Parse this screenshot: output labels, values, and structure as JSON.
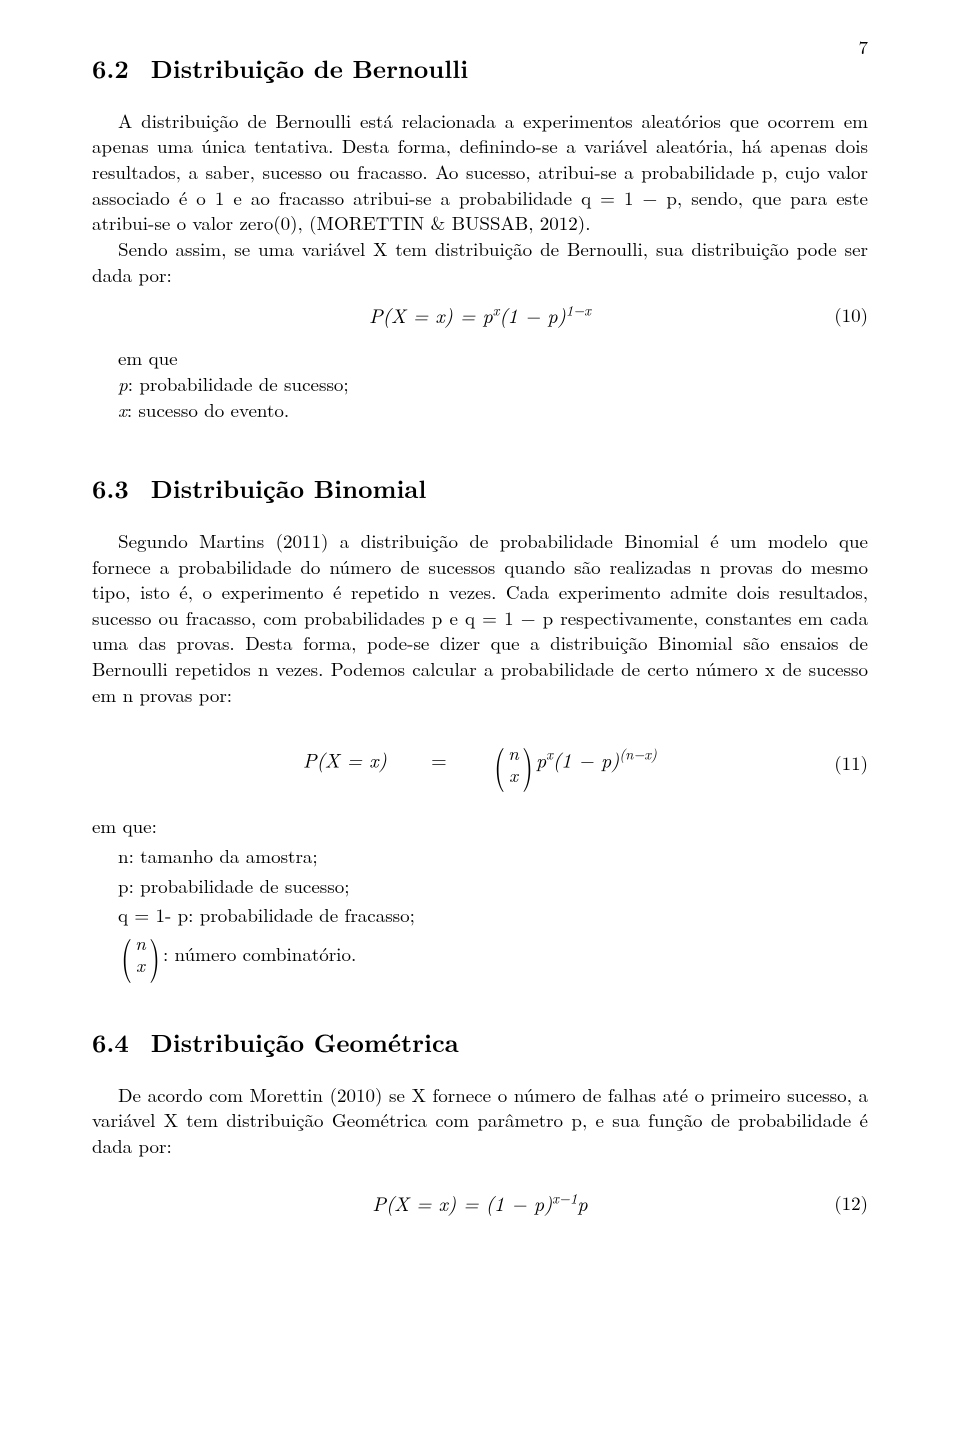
{
  "page_number": "7",
  "sec62": {
    "num": "6.2",
    "title": "Distribuição de Bernoulli",
    "p1": "A distribuição de Bernoulli está relacionada a experimentos aleatórios que ocorrem em apenas uma única tentativa. Desta forma, definindo-se a variável aleatória, há apenas dois resultados, a saber, sucesso ou fracasso. Ao sucesso, atribui-se a probabilidade p, cujo valor associado é o 1 e ao fracasso atribui-se a probabilidade q = 1 − p, sendo, que para este atribui-se o valor zero(0), (MORETTIN & BUSSAB, 2012).",
    "p2": "Sendo assim, se uma variável X tem distribuição de Bernoulli, sua distribuição pode ser dada por:",
    "eqnum": "(10)",
    "emque": "em que",
    "def_p": "p: probabilidade de sucesso;",
    "def_x": "x: sucesso do evento."
  },
  "sec63": {
    "num": "6.3",
    "title": "Distribuição Binomial",
    "p1": "Segundo Martins (2011) a distribuição de probabilidade Binomial é um modelo que fornece a probabilidade do número de sucessos quando são realizadas n provas do mesmo tipo, isto é, o experimento é repetido n vezes. Cada experimento admite dois resultados, sucesso ou fracasso, com probabilidades p e q = 1 − p respectivamente, constantes em cada uma das provas. Desta forma, pode-se dizer que a distribuição Binomial são ensaios de Bernoulli repetidos n vezes. Podemos calcular a probabilidade de certo número x de sucesso em n provas por:",
    "eqnum": "(11)",
    "emque": "em que:",
    "def_n": "n: tamanho da amostra;",
    "def_p": "p: probabilidade de sucesso;",
    "def_q": "q = 1- p: probabilidade de fracasso;",
    "def_binom": ": número combinatório."
  },
  "sec64": {
    "num": "6.4",
    "title": "Distribuição Geométrica",
    "p1": "De acordo com Morettin (2010) se X fornece o número de falhas até o primeiro sucesso, a variável X tem distribuição Geométrica com parâmetro p, e sua função de probabilidade é dada por:",
    "eqnum": "(12)"
  },
  "math": {
    "eq10": {
      "lhs": "P(X = x) = p",
      "exp1": "x",
      "mid": "(1 − p)",
      "exp2": "1−x"
    },
    "eq11": {
      "lhs": "P(X = x)",
      "eq": "=",
      "binom_top": "n",
      "binom_bot": "x",
      "tail1": "p",
      "exp1": "x",
      "tail2": "(1 − p)",
      "exp2": "(n−x)"
    },
    "eq12": {
      "lhs": "P(X = x) = (1 − p)",
      "exp1": "x−1",
      "tail": "p"
    }
  }
}
